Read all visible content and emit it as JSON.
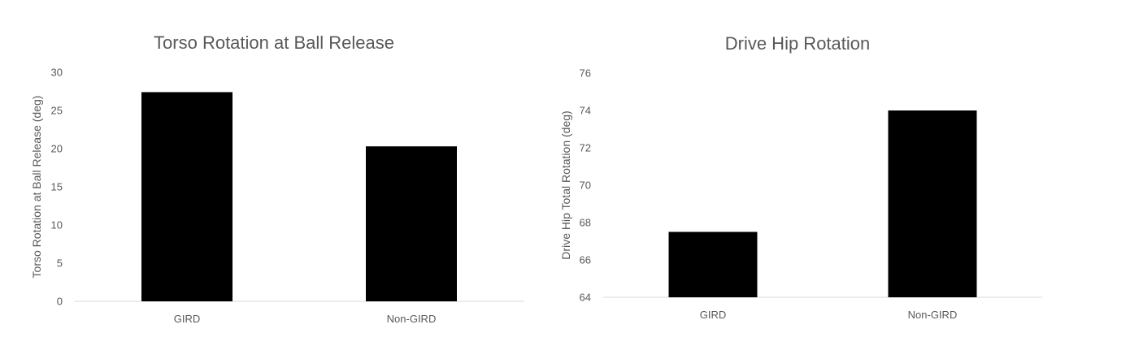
{
  "chart_data": [
    {
      "type": "bar",
      "title": "Torso Rotation at Ball Release",
      "xlabel": "",
      "ylabel": "Torso Rotation at Ball Release (deg)",
      "categories": [
        "GIRD",
        "Non-GIRD"
      ],
      "values": [
        27.4,
        20.3
      ],
      "ylim": [
        0,
        30
      ],
      "yticks": [
        0,
        5,
        10,
        15,
        20,
        25,
        30
      ],
      "bar_color": "#000000",
      "grid": false,
      "legend": "none"
    },
    {
      "type": "bar",
      "title": "Drive Hip Rotation",
      "xlabel": "",
      "ylabel": "Drive Hip Total Rotation (deg)",
      "categories": [
        "GIRD",
        "Non-GIRD"
      ],
      "values": [
        67.5,
        74.0
      ],
      "ylim": [
        64,
        76
      ],
      "yticks": [
        64,
        66,
        68,
        70,
        72,
        74,
        76
      ],
      "bar_color": "#000000",
      "grid": false,
      "legend": "none"
    }
  ]
}
